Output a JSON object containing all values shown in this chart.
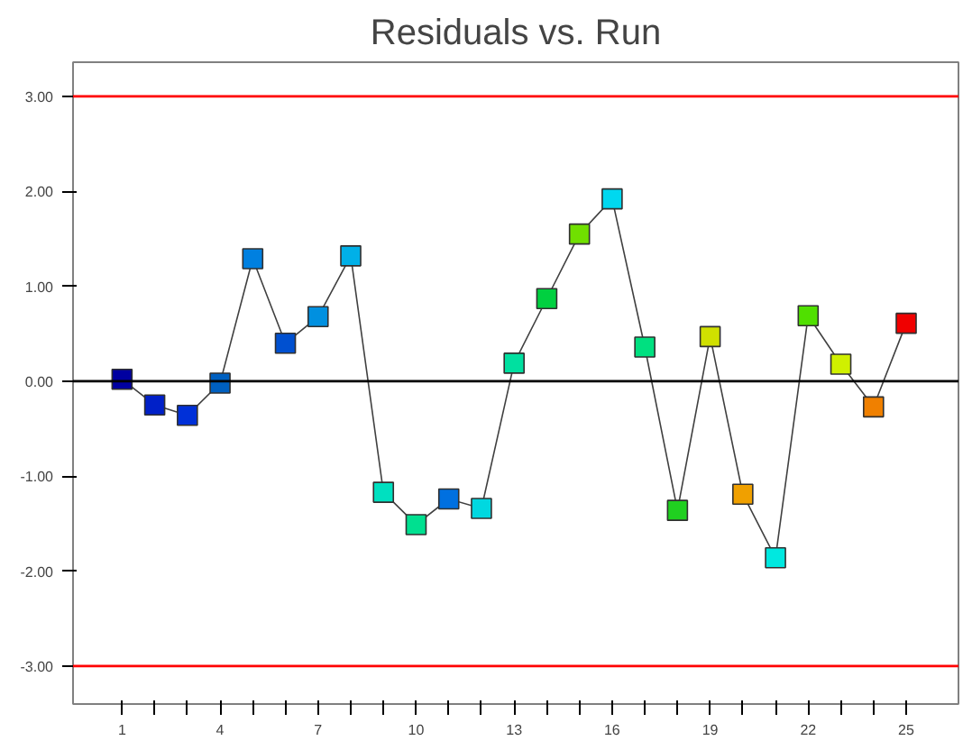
{
  "chart_data": {
    "type": "line",
    "title": "Residuals vs. Run",
    "x": [
      1,
      2,
      3,
      4,
      5,
      6,
      7,
      8,
      9,
      10,
      11,
      12,
      13,
      14,
      15,
      16,
      17,
      18,
      19,
      20,
      21,
      22,
      23,
      24,
      25
    ],
    "series": [
      {
        "color": "#404040",
        "values": [
          0.02,
          -0.25,
          -0.36,
          -0.02,
          1.29,
          0.4,
          0.68,
          1.32,
          -1.17,
          -1.51,
          -1.24,
          -1.34,
          0.19,
          0.87,
          1.55,
          1.92,
          0.36,
          -1.36,
          0.47,
          -1.19,
          -1.86,
          0.69,
          0.18,
          -0.27,
          0.61
        ],
        "colors": [
          "#0000a0",
          "#0020c8",
          "#0030d8",
          "#0060c0",
          "#0080e0",
          "#0050d0",
          "#0090e0",
          "#00b0e8",
          "#00e0c0",
          "#00e090",
          "#0070e0",
          "#00d8e0",
          "#00e0a0",
          "#00d040",
          "#70e000",
          "#00d8f0",
          "#00e080",
          "#20d020",
          "#d0e000",
          "#f0a000",
          "#00e8e0",
          "#50e000",
          "#d0f000",
          "#f08000",
          "#f00000"
        ]
      }
    ],
    "marker": "square",
    "grid": false,
    "xlim": [
      -0.5,
      26.6
    ],
    "ylim": [
      -3.4,
      3.36
    ],
    "xticks": [
      1,
      {
        "value": 2,
        "label": null
      },
      {
        "value": 3,
        "label": null
      },
      4,
      {
        "value": 5,
        "label": null
      },
      {
        "value": 6,
        "label": null
      },
      7,
      {
        "value": 8,
        "label": null
      },
      {
        "value": 9,
        "label": null
      },
      10,
      {
        "value": 11,
        "label": null
      },
      {
        "value": 12,
        "label": null
      },
      13,
      {
        "value": 14,
        "label": null
      },
      {
        "value": 15,
        "label": null
      },
      16,
      {
        "value": 17,
        "label": null
      },
      {
        "value": 18,
        "label": null
      },
      19,
      {
        "value": 20,
        "label": null
      },
      {
        "value": 21,
        "label": null
      },
      22,
      {
        "value": 23,
        "label": null
      },
      {
        "value": 24,
        "label": null
      },
      25
    ],
    "yticks": [
      {
        "value": -3,
        "label": "-3.00"
      },
      {
        "value": -2,
        "label": "-2.00"
      },
      {
        "value": -1,
        "label": "-1.00"
      },
      {
        "value": 0,
        "label": "0.00"
      },
      {
        "value": 1,
        "label": "1.00"
      },
      {
        "value": 2,
        "label": "2.00"
      },
      {
        "value": 3,
        "label": "3.00"
      }
    ],
    "ref_lines": [
      {
        "axis": "y",
        "value": 3,
        "color": "#ff0000"
      },
      {
        "axis": "y",
        "value": 0,
        "color": "#000000"
      },
      {
        "axis": "y",
        "value": -3,
        "color": "#ff0000"
      }
    ]
  }
}
